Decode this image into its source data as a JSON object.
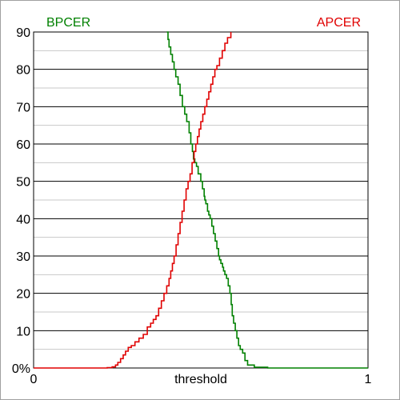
{
  "chart_data": {
    "type": "line",
    "title": "",
    "xlabel": "threshold",
    "ylabel": "",
    "xlim": [
      0,
      1
    ],
    "ylim": [
      0,
      90
    ],
    "x_tick_labels": [
      "0",
      "1"
    ],
    "y_tick_labels": [
      "0%",
      "10",
      "20",
      "30",
      "40",
      "50",
      "60",
      "70",
      "80",
      "90"
    ],
    "y_ticks": [
      0,
      10,
      20,
      30,
      40,
      50,
      60,
      70,
      80,
      90
    ],
    "minor_grid_step": 5,
    "grid": true,
    "series": [
      {
        "name": "BPCER",
        "color": "#008000",
        "label_position": "top-left",
        "x": [
          0.398,
          0.402,
          0.405,
          0.41,
          0.415,
          0.42,
          0.425,
          0.432,
          0.438,
          0.445,
          0.452,
          0.458,
          0.465,
          0.47,
          0.475,
          0.478,
          0.482,
          0.487,
          0.492,
          0.5,
          0.505,
          0.51,
          0.512,
          0.515,
          0.52,
          0.524,
          0.528,
          0.533,
          0.538,
          0.543,
          0.548,
          0.553,
          0.556,
          0.56,
          0.565,
          0.568,
          0.572,
          0.577,
          0.582,
          0.587,
          0.591,
          0.594,
          0.598,
          0.603,
          0.608,
          0.613,
          0.618,
          0.625,
          0.632,
          0.64,
          0.66,
          0.7,
          0.8,
          0.9,
          1.0
        ],
        "values": [
          90,
          88,
          86,
          84,
          82,
          80,
          78,
          76,
          73,
          70,
          68,
          66,
          63,
          60,
          58,
          56,
          55,
          54,
          52,
          50,
          48,
          46,
          45,
          44,
          42,
          41,
          40,
          38,
          36,
          34,
          32,
          30,
          29,
          28,
          27,
          26,
          25,
          24,
          22,
          20,
          17,
          14,
          12,
          10,
          8,
          6,
          5,
          4,
          2,
          0.8,
          0.2,
          0,
          0,
          0,
          0
        ]
      },
      {
        "name": "APCER",
        "color": "#e00000",
        "label_position": "top-right",
        "x": [
          0.0,
          0.1,
          0.2,
          0.22,
          0.235,
          0.245,
          0.252,
          0.26,
          0.268,
          0.275,
          0.283,
          0.292,
          0.303,
          0.315,
          0.328,
          0.34,
          0.35,
          0.358,
          0.366,
          0.374,
          0.382,
          0.39,
          0.398,
          0.405,
          0.41,
          0.415,
          0.42,
          0.426,
          0.432,
          0.438,
          0.444,
          0.45,
          0.456,
          0.462,
          0.468,
          0.474,
          0.48,
          0.485,
          0.49,
          0.495,
          0.5,
          0.506,
          0.512,
          0.518,
          0.524,
          0.53,
          0.536,
          0.542,
          0.548,
          0.556,
          0.564,
          0.572,
          0.58,
          0.59
        ],
        "values": [
          0,
          0,
          0,
          0.1,
          0.3,
          0.8,
          1.5,
          2.5,
          3.5,
          4.5,
          5.5,
          6,
          7,
          8,
          9,
          11,
          12,
          13,
          14,
          16,
          18,
          20,
          22,
          24,
          26,
          28,
          30,
          33,
          36,
          39,
          42,
          45,
          48,
          50,
          52,
          55,
          58,
          60,
          62,
          64,
          66,
          68,
          70,
          72,
          74,
          76,
          78,
          80,
          81,
          83,
          85,
          87,
          88.5,
          90
        ]
      }
    ]
  }
}
